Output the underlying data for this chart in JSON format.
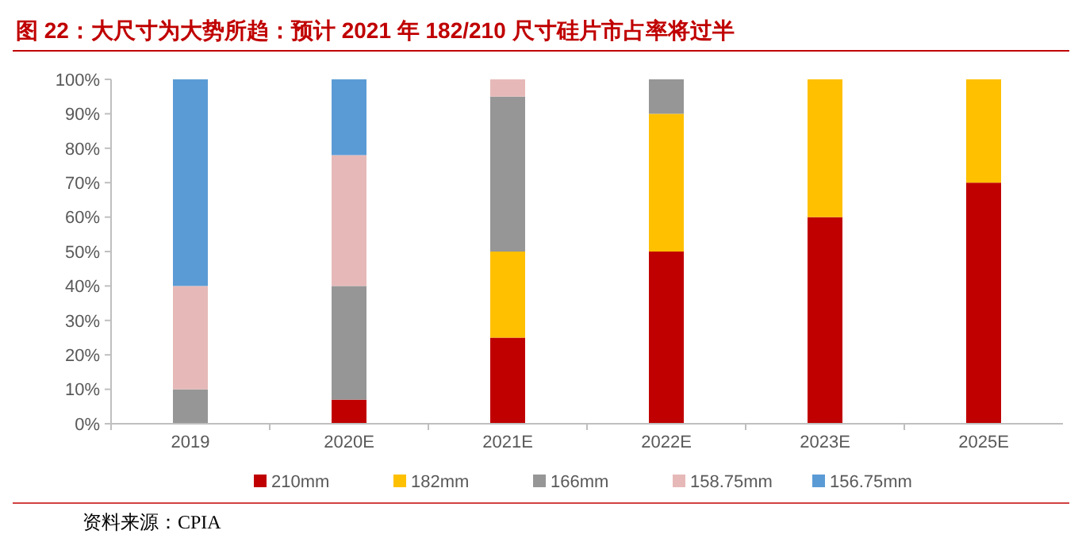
{
  "chart_data": {
    "type": "bar",
    "title": "图 22：大尺寸为大势所趋：预计 2021 年 182/210 尺寸硅片市占率将过半",
    "stacked": true,
    "categories": [
      "2019",
      "2020E",
      "2021E",
      "2022E",
      "2023E",
      "2025E"
    ],
    "series": [
      {
        "name": "210mm",
        "color": "#c00000",
        "values": [
          0,
          7,
          25,
          50,
          60,
          70
        ]
      },
      {
        "name": "182mm",
        "color": "#ffc000",
        "values": [
          0,
          0,
          25,
          40,
          40,
          30
        ]
      },
      {
        "name": "166mm",
        "color": "#969696",
        "values": [
          10,
          33,
          45,
          10,
          0,
          0
        ]
      },
      {
        "name": "158.75mm",
        "color": "#e6b9b8",
        "values": [
          30,
          38,
          5,
          0,
          0,
          0
        ]
      },
      {
        "name": "156.75mm",
        "color": "#5b9bd5",
        "values": [
          60,
          22,
          0,
          0,
          0,
          0
        ]
      }
    ],
    "ylim": [
      0,
      100
    ],
    "yticks": [
      {
        "value": 0,
        "label": "0%"
      },
      {
        "value": 10,
        "label": "10%"
      },
      {
        "value": 20,
        "label": "20%"
      },
      {
        "value": 30,
        "label": "30%"
      },
      {
        "value": 40,
        "label": "40%"
      },
      {
        "value": 50,
        "label": "50%"
      },
      {
        "value": 60,
        "label": "60%"
      },
      {
        "value": 70,
        "label": "70%"
      },
      {
        "value": 80,
        "label": "80%"
      },
      {
        "value": 90,
        "label": "90%"
      },
      {
        "value": 100,
        "label": "100%"
      }
    ],
    "grid": false,
    "legend": "bottom",
    "annotations": [
      "资料来源：CPIA"
    ]
  }
}
